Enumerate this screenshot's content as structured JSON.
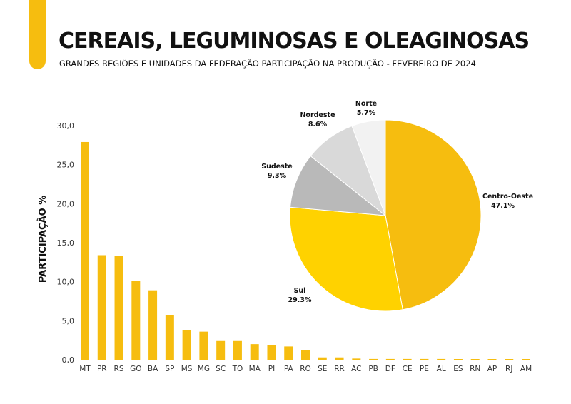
{
  "title": "CEREAIS, LEGUMINOSAS E OLEAGINOSAS",
  "subtitle": "GRANDES REGIÕES E UNIDADES DA FEDERAÇÃO PARTICIPAÇÃO NA PRODUÇÃO - FEVEREIRO DE 2024",
  "colors": {
    "accent": "#f6bd0f",
    "bar": "#f6bd0f"
  },
  "chart_data": [
    {
      "type": "bar",
      "ylabel": "PARTICIPAÇÃO %",
      "ylim": [
        0,
        30
      ],
      "yticks": [
        "0,0",
        "5,0",
        "10,0",
        "15,0",
        "20,0",
        "25,0",
        "30,0"
      ],
      "categories": [
        "MT",
        "PR",
        "RS",
        "GO",
        "BA",
        "SP",
        "MS",
        "MG",
        "SC",
        "TO",
        "MA",
        "PI",
        "PA",
        "RO",
        "SE",
        "RR",
        "AC",
        "PB",
        "DF",
        "CE",
        "PE",
        "AL",
        "ES",
        "RN",
        "AP",
        "RJ",
        "AM"
      ],
      "values": [
        27.9,
        13.4,
        13.35,
        10.1,
        8.9,
        5.7,
        3.75,
        3.6,
        2.4,
        2.4,
        2.0,
        1.9,
        1.7,
        1.2,
        0.3,
        0.3,
        0.15,
        0.1,
        0.1,
        0.1,
        0.1,
        0.1,
        0.05,
        0.05,
        0.05,
        0.05,
        0.05
      ]
    },
    {
      "type": "pie",
      "slices": [
        {
          "label": "Centro-Oeste",
          "value": 47.1,
          "text": "47.1%",
          "color": "#f6bd0f"
        },
        {
          "label": "Sul",
          "value": 29.3,
          "text": "29.3%",
          "color": "#ffd200"
        },
        {
          "label": "Sudeste",
          "value": 9.3,
          "text": "9.3%",
          "color": "#b9b9b9"
        },
        {
          "label": "Nordeste",
          "value": 8.6,
          "text": "8.6%",
          "color": "#d9d9d9"
        },
        {
          "label": "Norte",
          "value": 5.7,
          "text": "5.7%",
          "color": "#f2f2f2"
        }
      ]
    }
  ]
}
